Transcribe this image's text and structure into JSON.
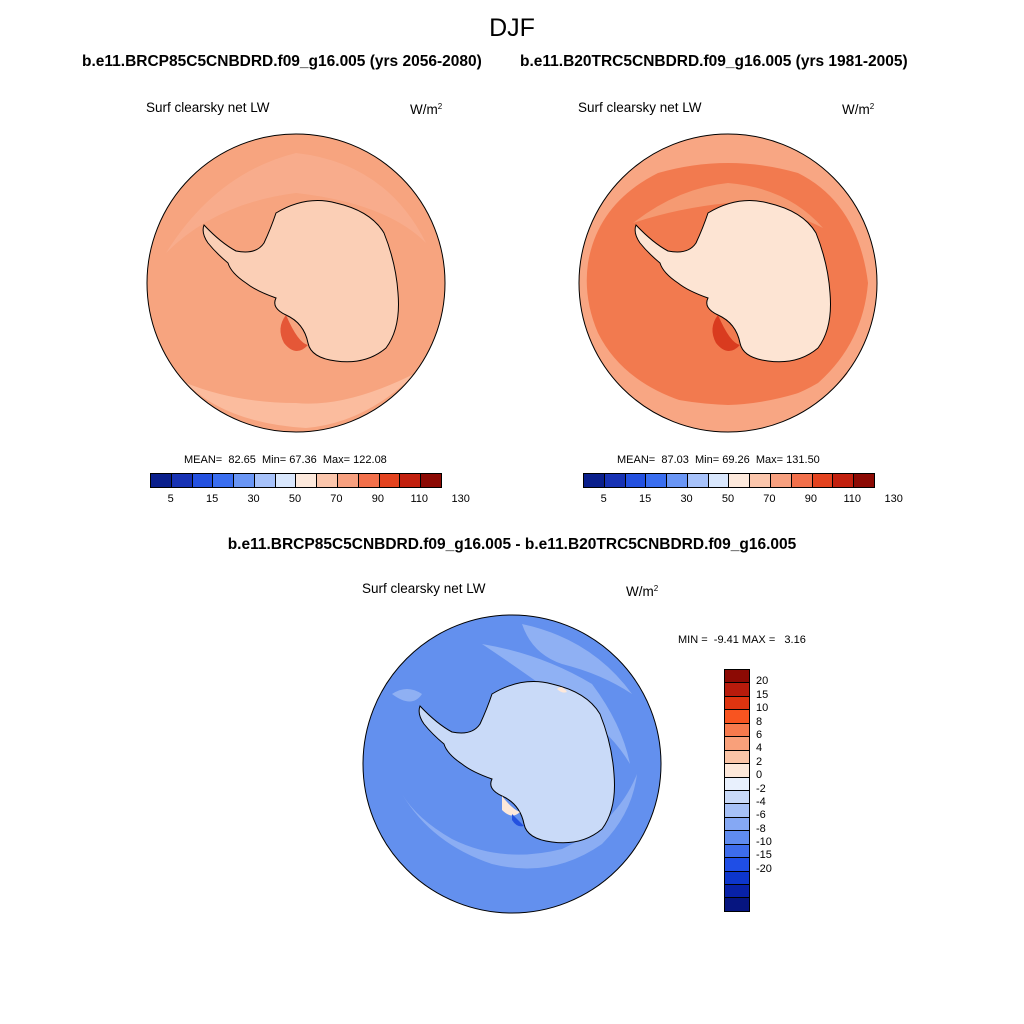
{
  "figure": {
    "season": "DJF",
    "case_a_title": "b.e11.BRCP85C5CNBDRD.f09_g16.005 (yrs 2056-2080)",
    "case_b_title": "b.e11.B20TRC5CNBDRD.f09_g16.005 (yrs 1981-2005)",
    "diff_title": "b.e11.BRCP85C5CNBDRD.f09_g16.005 - b.e11.B20TRC5CNBDRD.f09_g16.005"
  },
  "panels": {
    "a": {
      "variable": "Surf clearsky net LW",
      "units": "W/m",
      "units_sup": "2",
      "mean_label": "MEAN=",
      "mean": "82.65",
      "min_label": "Min=",
      "min": "67.36",
      "max_label": "Max=",
      "max": "122.08"
    },
    "b": {
      "variable": "Surf clearsky net LW",
      "units": "W/m",
      "units_sup": "2",
      "mean_label": "MEAN=",
      "mean": "87.03",
      "min_label": "Min=",
      "min": "69.26",
      "max_label": "Max=",
      "max": "131.50"
    },
    "diff": {
      "variable": "Surf clearsky net LW",
      "units": "W/m",
      "units_sup": "2",
      "min_label": "MIN =",
      "min": "-9.41",
      "max_label": "MAX =",
      "max": "3.16"
    }
  },
  "colorbar_abs": {
    "colors": [
      "#0a1f8c",
      "#1732b4",
      "#2451e0",
      "#3a6ef0",
      "#6a96f5",
      "#a7c2fa",
      "#d9e7fd",
      "#fde9dc",
      "#fbc6ac",
      "#f7a07f",
      "#f2704b",
      "#e3431f",
      "#c2200e",
      "#8c0a04"
    ],
    "tick_labels": [
      "5",
      "15",
      "30",
      "50",
      "70",
      "90",
      "110",
      "130"
    ]
  },
  "colorbar_diff": {
    "colors": [
      "#8c0a04",
      "#b81b0c",
      "#de3410",
      "#f85420",
      "#f77a4d",
      "#f9a07a",
      "#fbc4a6",
      "#fde8da",
      "#e8f0fd",
      "#c9daf9",
      "#a6c1f7",
      "#85a8f4",
      "#5f8bf0",
      "#3d6cec",
      "#1f4ee6",
      "#0d36cc",
      "#0821a8",
      "#061580"
    ],
    "tick_labels": [
      "20",
      "15",
      "10",
      "8",
      "6",
      "4",
      "2",
      "0",
      "-2",
      "-4",
      "-6",
      "-8",
      "-10",
      "-15",
      "-20"
    ]
  },
  "map_colors": {
    "ocean_a": "#f7a47f",
    "land_a": "#fbcfb6",
    "ocean_b_outer": "#f8a683",
    "ocean_b_inner": "#f27a4f",
    "land_b": "#fde4d3",
    "ocean_diff": "#6390ee",
    "ocean_diff_light": "#8fb0f3",
    "land_diff": "#c9daf8"
  }
}
